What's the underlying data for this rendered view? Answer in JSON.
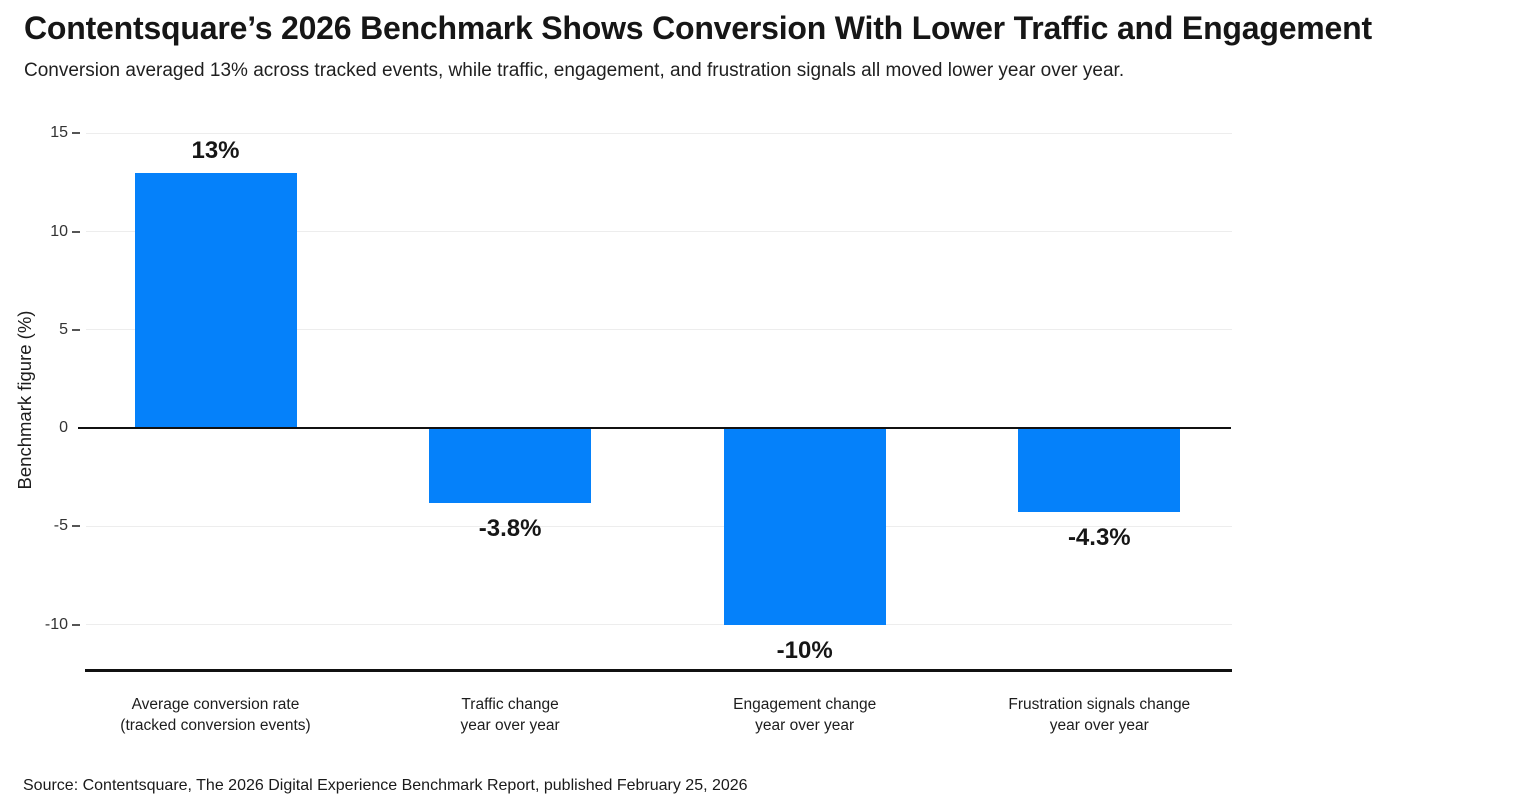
{
  "header": {
    "title": "Contentsquare’s 2026 Benchmark Shows Conversion With Lower Traffic and Engagement",
    "subtitle": "Conversion averaged 13% across tracked events, while traffic, engagement, and frustration signals all moved lower year over year."
  },
  "chart_data": {
    "type": "bar",
    "title": "Contentsquare’s 2026 Benchmark Shows Conversion With Lower Traffic and Engagement",
    "subtitle": "Conversion averaged 13% across tracked events, while traffic, engagement, and frustration signals all moved lower year over year.",
    "categories": [
      "Average conversion rate\n(tracked conversion events)",
      "Traffic change\nyear over year",
      "Engagement change\nyear over year",
      "Frustration signals change\nyear over year"
    ],
    "values": [
      13,
      -3.8,
      -10,
      -4.3
    ],
    "value_labels": [
      "13%",
      "-3.8%",
      "-10%",
      "-4.3%"
    ],
    "xlabel": "",
    "ylabel": "Benchmark figure (%)",
    "yticks": [
      15,
      10,
      5,
      0,
      -5,
      -10
    ],
    "ylim": [
      -12.5,
      15
    ],
    "grid": true,
    "legend": "none",
    "colors": {
      "bar": "#0581fa",
      "gridline": "#ededed",
      "zero_line": "#111111",
      "axis_line": "#111111",
      "tick_text": "#333333",
      "label_text": "#161616"
    }
  },
  "footer": {
    "source": "Source: Contentsquare, The 2026 Digital Experience Benchmark Report, published February 25, 2026"
  }
}
